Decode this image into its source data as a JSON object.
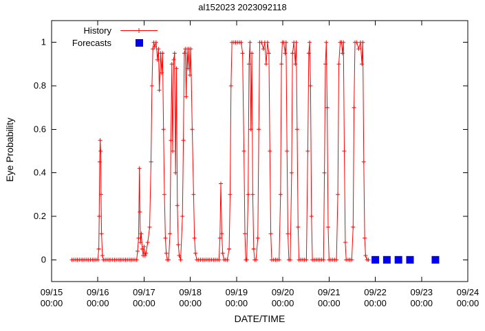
{
  "title": "al152023 2023092118",
  "axes": {
    "x_label": "DATE/TIME",
    "y_label": "Eye Probability",
    "x_ticks": [
      {
        "date": "09/15",
        "time": "00:00",
        "day": 0
      },
      {
        "date": "09/16",
        "time": "00:00",
        "day": 1
      },
      {
        "date": "09/17",
        "time": "00:00",
        "day": 2
      },
      {
        "date": "09/18",
        "time": "00:00",
        "day": 3
      },
      {
        "date": "09/19",
        "time": "00:00",
        "day": 4
      },
      {
        "date": "09/20",
        "time": "00:00",
        "day": 5
      },
      {
        "date": "09/21",
        "time": "00:00",
        "day": 6
      },
      {
        "date": "09/22",
        "time": "00:00",
        "day": 7
      },
      {
        "date": "09/23",
        "time": "00:00",
        "day": 8
      },
      {
        "date": "09/24",
        "time": "00:00",
        "day": 9
      }
    ],
    "y_ticks": [
      {
        "label": "0",
        "value": 0
      },
      {
        "label": "0.2",
        "value": 0.2
      },
      {
        "label": "0.4",
        "value": 0.4
      },
      {
        "label": "0.6",
        "value": 0.6
      },
      {
        "label": "0.8",
        "value": 0.8
      },
      {
        "label": "1",
        "value": 1
      }
    ]
  },
  "legend": [
    {
      "label": "History",
      "marker": "line-with-plus",
      "color": "#ff0000"
    },
    {
      "label": "Forecasts",
      "marker": "filled-square",
      "color": "#0000ee"
    }
  ],
  "chart_data": {
    "type": "line",
    "title": "al152023 2023092118",
    "xlabel": "DATE/TIME",
    "ylabel": "Eye Probability",
    "x_unit": "days since 2023-09-15 00:00",
    "xlim": [
      0,
      9
    ],
    "ylim": [
      -0.1,
      1.1
    ],
    "grid": false,
    "legend_position": "top-left-inside",
    "series": [
      {
        "name": "History",
        "style": "linespoints",
        "marker": "plus",
        "color": "#ff0000",
        "points": [
          [
            0.44,
            0
          ],
          [
            0.48,
            0
          ],
          [
            0.52,
            0
          ],
          [
            0.56,
            0
          ],
          [
            0.6,
            0
          ],
          [
            0.64,
            0
          ],
          [
            0.68,
            0
          ],
          [
            0.72,
            0
          ],
          [
            0.76,
            0
          ],
          [
            0.8,
            0
          ],
          [
            0.84,
            0
          ],
          [
            0.88,
            0
          ],
          [
            0.92,
            0
          ],
          [
            0.96,
            0
          ],
          [
            1.0,
            0
          ],
          [
            1.02,
            0.05
          ],
          [
            1.03,
            0.2
          ],
          [
            1.04,
            0.45
          ],
          [
            1.05,
            0.55
          ],
          [
            1.06,
            0.5
          ],
          [
            1.07,
            0.3
          ],
          [
            1.08,
            0.12
          ],
          [
            1.1,
            0.02
          ],
          [
            1.12,
            0
          ],
          [
            1.16,
            0
          ],
          [
            1.2,
            0
          ],
          [
            1.24,
            0
          ],
          [
            1.28,
            0
          ],
          [
            1.32,
            0
          ],
          [
            1.36,
            0
          ],
          [
            1.4,
            0
          ],
          [
            1.44,
            0
          ],
          [
            1.48,
            0
          ],
          [
            1.52,
            0
          ],
          [
            1.56,
            0
          ],
          [
            1.6,
            0
          ],
          [
            1.64,
            0
          ],
          [
            1.68,
            0
          ],
          [
            1.72,
            0
          ],
          [
            1.76,
            0
          ],
          [
            1.8,
            0
          ],
          [
            1.84,
            0
          ],
          [
            1.86,
            0.04
          ],
          [
            1.88,
            0.1
          ],
          [
            1.9,
            0.42
          ],
          [
            1.91,
            0.22
          ],
          [
            1.92,
            0.08
          ],
          [
            1.94,
            0.12
          ],
          [
            1.96,
            0.05
          ],
          [
            1.98,
            0.02
          ],
          [
            2.0,
            0.06
          ],
          [
            2.02,
            0.02
          ],
          [
            2.04,
            0.03
          ],
          [
            2.08,
            0.08
          ],
          [
            2.12,
            0.15
          ],
          [
            2.15,
            0.45
          ],
          [
            2.17,
            0.8
          ],
          [
            2.19,
            0.97
          ],
          [
            2.21,
            1
          ],
          [
            2.23,
            0.98
          ],
          [
            2.26,
            1
          ],
          [
            2.29,
            0.92
          ],
          [
            2.31,
            0.97
          ],
          [
            2.33,
            0.78
          ],
          [
            2.36,
            0.95
          ],
          [
            2.38,
            0.86
          ],
          [
            2.4,
            0.95
          ],
          [
            2.42,
            0.6
          ],
          [
            2.44,
            0.3
          ],
          [
            2.46,
            0.1
          ],
          [
            2.48,
            0.03
          ],
          [
            2.5,
            0
          ],
          [
            2.53,
            0
          ],
          [
            2.56,
            0.12
          ],
          [
            2.58,
            0.55
          ],
          [
            2.6,
            0.9
          ],
          [
            2.62,
            0.5
          ],
          [
            2.64,
            0.92
          ],
          [
            2.66,
            0.95
          ],
          [
            2.68,
            0.4
          ],
          [
            2.7,
            0.88
          ],
          [
            2.72,
            0.25
          ],
          [
            2.74,
            0.07
          ],
          [
            2.76,
            0.02
          ],
          [
            2.79,
            0
          ],
          [
            2.83,
            0.2
          ],
          [
            2.85,
            0.55
          ],
          [
            2.87,
            0.95
          ],
          [
            2.89,
            0.97
          ],
          [
            2.91,
            0.75
          ],
          [
            2.93,
            0.97
          ],
          [
            2.95,
            0.88
          ],
          [
            2.97,
            0.97
          ],
          [
            2.99,
            0.85
          ],
          [
            3.01,
            0.97
          ],
          [
            3.04,
            0.6
          ],
          [
            3.07,
            0.3
          ],
          [
            3.09,
            0.1
          ],
          [
            3.11,
            0.03
          ],
          [
            3.14,
            0
          ],
          [
            3.18,
            0
          ],
          [
            3.22,
            0
          ],
          [
            3.26,
            0
          ],
          [
            3.3,
            0
          ],
          [
            3.34,
            0
          ],
          [
            3.38,
            0
          ],
          [
            3.42,
            0
          ],
          [
            3.46,
            0
          ],
          [
            3.5,
            0
          ],
          [
            3.54,
            0
          ],
          [
            3.58,
            0
          ],
          [
            3.62,
            0
          ],
          [
            3.64,
            0.1
          ],
          [
            3.66,
            0.35
          ],
          [
            3.68,
            0.12
          ],
          [
            3.7,
            0.03
          ],
          [
            3.73,
            0
          ],
          [
            3.76,
            0
          ],
          [
            3.8,
            0
          ],
          [
            3.84,
            0.05
          ],
          [
            3.86,
            0.3
          ],
          [
            3.88,
            0.8
          ],
          [
            3.9,
            1
          ],
          [
            3.94,
            1
          ],
          [
            3.98,
            1
          ],
          [
            4.02,
            1
          ],
          [
            4.06,
            1
          ],
          [
            4.1,
            1
          ],
          [
            4.13,
            0.95
          ],
          [
            4.16,
            0.5
          ],
          [
            4.18,
            0.12
          ],
          [
            4.2,
            0
          ],
          [
            4.22,
            0
          ],
          [
            4.25,
            0.3
          ],
          [
            4.27,
            0.9
          ],
          [
            4.29,
            1
          ],
          [
            4.31,
            0.6
          ],
          [
            4.33,
            0.95
          ],
          [
            4.35,
            0.3
          ],
          [
            4.37,
            0.05
          ],
          [
            4.39,
            0
          ],
          [
            4.42,
            0
          ],
          [
            4.46,
            0.1
          ],
          [
            4.48,
            0.6
          ],
          [
            4.5,
            1
          ],
          [
            4.54,
            1
          ],
          [
            4.58,
            0.97
          ],
          [
            4.61,
            1
          ],
          [
            4.64,
            0.9
          ],
          [
            4.67,
            1
          ],
          [
            4.7,
            0.95
          ],
          [
            4.72,
            0.5
          ],
          [
            4.74,
            0.12
          ],
          [
            4.76,
            0
          ],
          [
            4.8,
            0
          ],
          [
            4.84,
            0
          ],
          [
            4.88,
            0
          ],
          [
            4.92,
            0
          ],
          [
            4.95,
            0.3
          ],
          [
            4.97,
            0.9
          ],
          [
            4.99,
            1
          ],
          [
            5.02,
            1
          ],
          [
            5.05,
            0.95
          ],
          [
            5.07,
            1
          ],
          [
            5.09,
            0.5
          ],
          [
            5.11,
            0.12
          ],
          [
            5.13,
            0
          ],
          [
            5.16,
            0
          ],
          [
            5.19,
            0.4
          ],
          [
            5.21,
            0.95
          ],
          [
            5.24,
            1
          ],
          [
            5.27,
            0.9
          ],
          [
            5.29,
            1
          ],
          [
            5.31,
            0.6
          ],
          [
            5.33,
            0.15
          ],
          [
            5.35,
            0
          ],
          [
            5.39,
            0
          ],
          [
            5.43,
            0
          ],
          [
            5.47,
            0
          ],
          [
            5.51,
            0
          ],
          [
            5.54,
            0.5
          ],
          [
            5.56,
            0.95
          ],
          [
            5.58,
            1
          ],
          [
            5.6,
            0.8
          ],
          [
            5.62,
            0.2
          ],
          [
            5.64,
            0
          ],
          [
            5.68,
            0
          ],
          [
            5.72,
            0
          ],
          [
            5.76,
            0
          ],
          [
            5.8,
            0
          ],
          [
            5.84,
            0
          ],
          [
            5.88,
            0
          ],
          [
            5.9,
            0.4
          ],
          [
            5.92,
            0.9
          ],
          [
            5.94,
            1
          ],
          [
            5.96,
            0.7
          ],
          [
            5.98,
            0.15
          ],
          [
            6.0,
            0
          ],
          [
            6.04,
            0
          ],
          [
            6.08,
            0
          ],
          [
            6.12,
            0
          ],
          [
            6.16,
            0
          ],
          [
            6.19,
            0.3
          ],
          [
            6.21,
            0.9
          ],
          [
            6.24,
            1
          ],
          [
            6.27,
            1
          ],
          [
            6.29,
            0.95
          ],
          [
            6.31,
            1
          ],
          [
            6.33,
            0.5
          ],
          [
            6.35,
            0.08
          ],
          [
            6.37,
            0
          ],
          [
            6.41,
            0
          ],
          [
            6.45,
            0
          ],
          [
            6.49,
            0
          ],
          [
            6.52,
            0.15
          ],
          [
            6.54,
            0.7
          ],
          [
            6.56,
            1
          ],
          [
            6.6,
            1
          ],
          [
            6.64,
            0.97
          ],
          [
            6.68,
            1
          ],
          [
            6.71,
            0.9
          ],
          [
            6.73,
            1
          ],
          [
            6.75,
            0.45
          ],
          [
            6.77,
            0.1
          ],
          [
            6.79,
            0.02
          ],
          [
            6.82,
            0
          ],
          [
            6.85,
            0
          ]
        ]
      },
      {
        "name": "Forecasts",
        "style": "points",
        "marker": "filled-square",
        "color": "#0000ee",
        "points": [
          [
            7.0,
            0
          ],
          [
            7.25,
            0
          ],
          [
            7.5,
            0
          ],
          [
            7.75,
            0
          ],
          [
            8.3,
            0
          ]
        ]
      }
    ]
  }
}
